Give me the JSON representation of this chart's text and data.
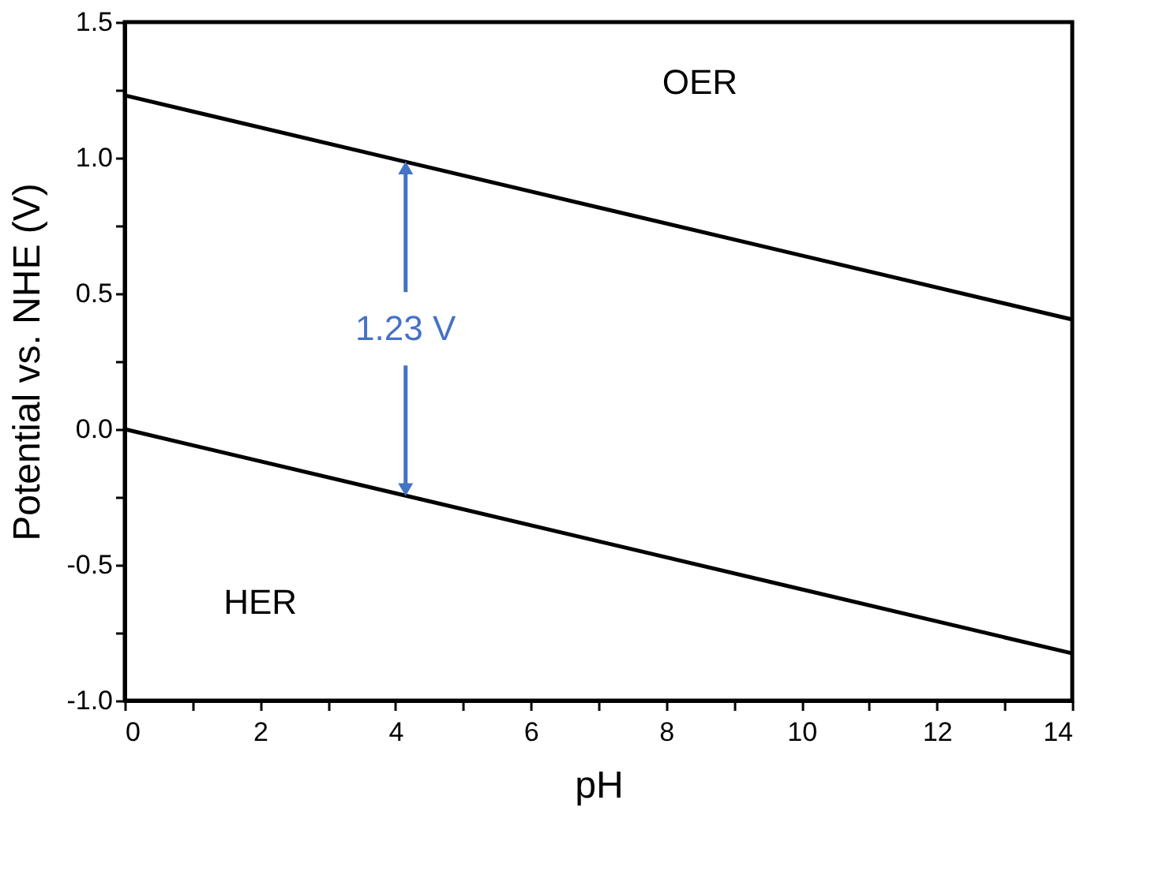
{
  "chart_data": {
    "type": "line",
    "xlabel": "pH",
    "ylabel": "Potential vs. NHE (V)",
    "x": [
      0,
      14
    ],
    "series": [
      {
        "color": "#000000",
        "values": [
          1.23,
          0.404
        ]
      },
      {
        "color": "#000000",
        "values": [
          0,
          -0.826
        ]
      }
    ],
    "xlim": [
      0,
      14
    ],
    "ylim": [
      -1,
      1.5
    ],
    "xticks": [
      0,
      {
        "value": 1,
        "label": null
      },
      2,
      {
        "value": 3,
        "label": null
      },
      4,
      {
        "value": 5,
        "label": null
      },
      6,
      {
        "value": 7,
        "label": null
      },
      8,
      {
        "value": 9,
        "label": null
      },
      10,
      {
        "value": 11,
        "label": null
      },
      12,
      {
        "value": 13,
        "label": null
      },
      14
    ],
    "yticks": [
      {
        "value": -1,
        "label": "-1.0"
      },
      {
        "value": -0.75,
        "label": null
      },
      {
        "value": -0.5,
        "label": "-0.5"
      },
      {
        "value": -0.25,
        "label": null
      },
      {
        "value": 0,
        "label": "0.0"
      },
      {
        "value": 0.25,
        "label": null
      },
      {
        "value": 0.5,
        "label": "0.5"
      },
      {
        "value": 0.75,
        "label": null
      },
      {
        "value": 1,
        "label": "1.0"
      },
      {
        "value": 1.25,
        "label": null
      },
      {
        "value": 1.5,
        "label": "1.5"
      }
    ],
    "annotations": [
      "OER",
      "HER",
      {
        "text": "1.23 V",
        "x": 4.15,
        "y": 0.985
      }
    ],
    "grid": false,
    "marker": "none",
    "line_style": "solid"
  }
}
